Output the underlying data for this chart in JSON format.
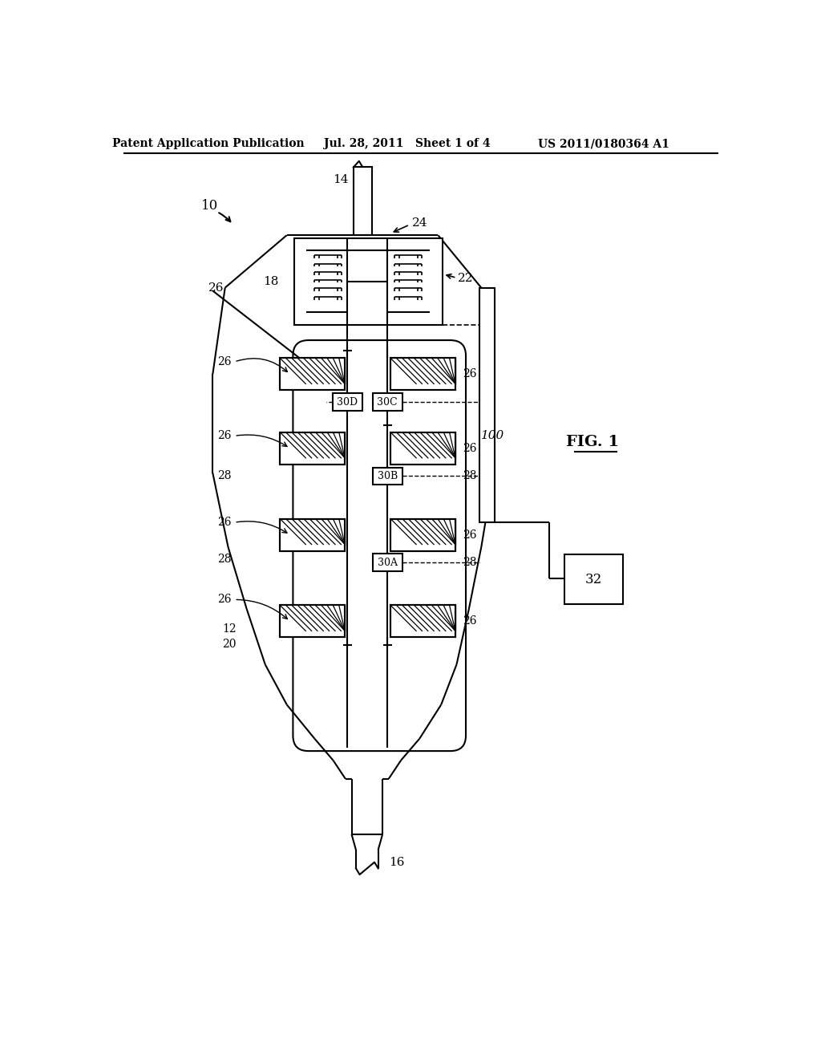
{
  "bg_color": "#ffffff",
  "line_color": "#000000",
  "header_left": "Patent Application Publication",
  "header_center": "Jul. 28, 2011   Sheet 1 of 4",
  "header_right": "US 2011/0180364 A1",
  "fig_label": "FIG. 1",
  "ref_10": "10",
  "ref_12": "12",
  "ref_14": "14",
  "ref_16": "16",
  "ref_18": "18",
  "ref_20": "20",
  "ref_22": "22",
  "ref_24": "24",
  "ref_26": "26",
  "ref_28": "28",
  "ref_30A": "30A",
  "ref_30B": "30B",
  "ref_30C": "30C",
  "ref_30D": "30D",
  "ref_32": "32",
  "ref_100": "100",
  "lw": 1.5,
  "lw_thin": 1.0,
  "lw_heavy": 2.0
}
